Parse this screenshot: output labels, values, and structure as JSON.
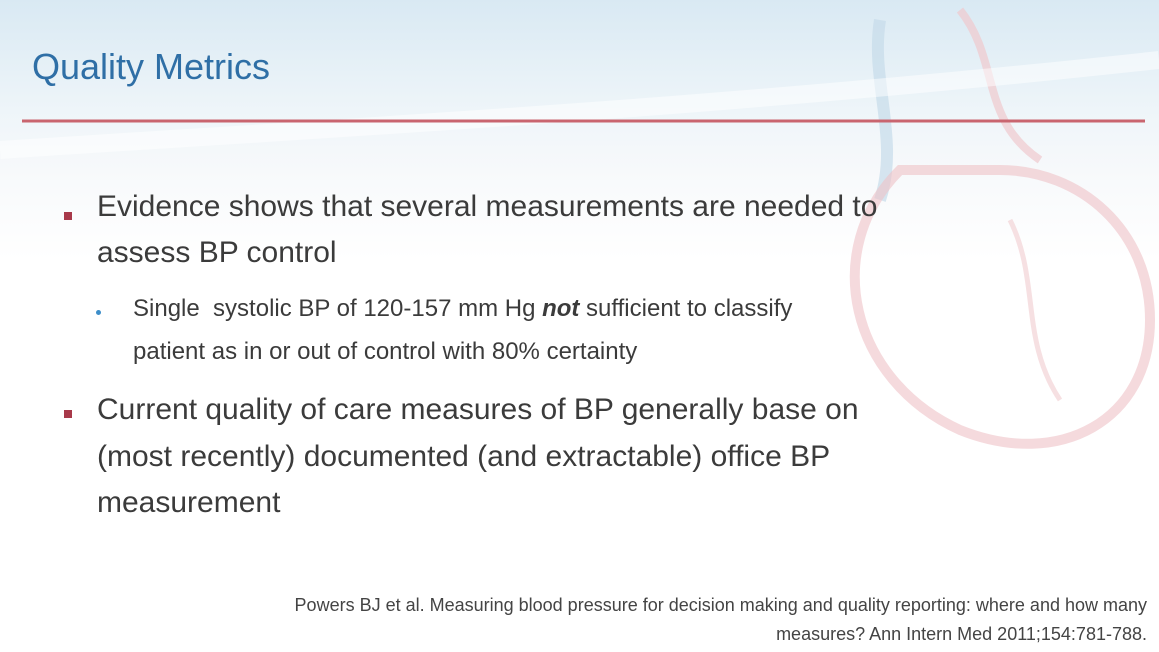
{
  "title": "Quality Metrics",
  "bullets": [
    {
      "lines": [
        "Evidence shows that several measurements are needed to",
        "assess BP control"
      ],
      "sub": [
        {
          "lines": [
            [
              "Single  systolic BP of 120-157 mm Hg ",
              "not",
              " sufficient to classify"
            ],
            [
              "patient as in or out of control with 80% certainty"
            ]
          ]
        }
      ]
    },
    {
      "lines": [
        "Current quality of care measures of BP generally base on",
        "(most recently) documented (and extractable) office BP",
        "measurement"
      ]
    }
  ],
  "citation": {
    "lines": [
      "Powers BJ et al. Measuring blood pressure for decision making and quality reporting: where and how many",
      "measures? Ann Intern Med 2011;154:781-788."
    ]
  }
}
